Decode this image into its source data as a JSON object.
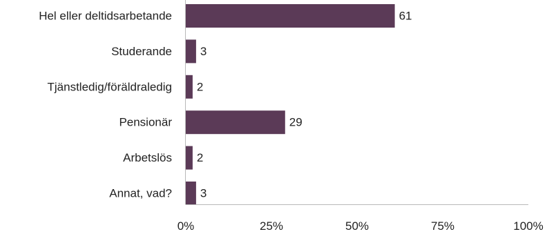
{
  "chart_data": {
    "type": "bar",
    "orientation": "horizontal",
    "categories": [
      "Hel eller deltidsarbetande",
      "Studerande",
      "Tjänstledig/föräldraledig",
      "Pensionär",
      "Arbetslös",
      "Annat, vad?"
    ],
    "values": [
      61,
      3,
      2,
      29,
      2,
      3
    ],
    "value_labels": [
      "61",
      "3",
      "2",
      "29",
      "2",
      "3"
    ],
    "xlim": [
      0,
      100
    ],
    "x_ticks": [
      0,
      25,
      50,
      75,
      100
    ],
    "x_tick_labels": [
      "0%",
      "25%",
      "50%",
      "75%",
      "100%"
    ],
    "title": "",
    "xlabel": "",
    "ylabel": "",
    "grid": false,
    "legend": "none",
    "bar_color": "#5b3a57"
  }
}
